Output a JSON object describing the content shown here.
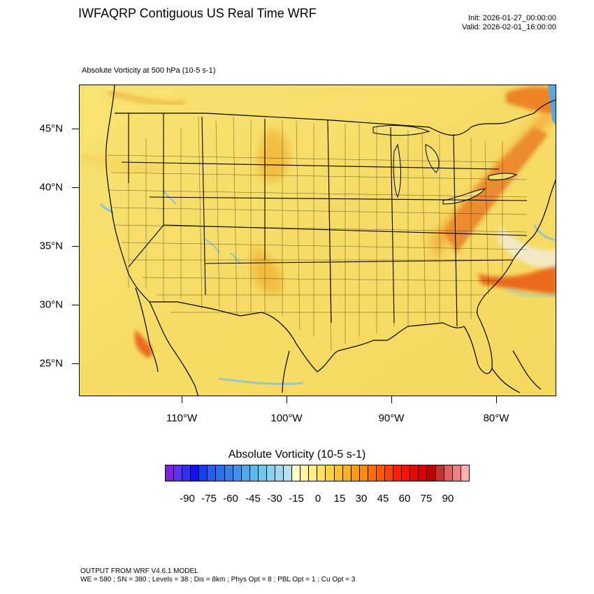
{
  "header": {
    "title": "IWFAQRP Contiguous US Real Time WRF",
    "init": "Init: 2026-01-27_00:00:00",
    "valid": "Valid: 2026-02-01_16:00:00"
  },
  "map": {
    "field_label": "Absolute Vorticity at 500 hPa   (10-5 s-1)",
    "lat_labels": [
      "45°N",
      "40°N",
      "35°N",
      "30°N",
      "25°N"
    ],
    "lon_labels": [
      "110°W",
      "100°W",
      "90°W",
      "80°W"
    ],
    "colors": {
      "background": "#f5e070",
      "positive_band": "#f0a020",
      "strong_band": "#e05010",
      "negative": "#6fc0f0"
    }
  },
  "colorbar": {
    "title": "Absolute Vorticity  (10-5 s-1)",
    "labels": [
      "-90",
      "-75",
      "-60",
      "-45",
      "-30",
      "-15",
      "0",
      "15",
      "30",
      "45",
      "60",
      "75",
      "90"
    ],
    "colors": [
      "#8020e0",
      "#6030f0",
      "#3030f0",
      "#1010f0",
      "#1040f0",
      "#2060f0",
      "#2a70e8",
      "#3380e8",
      "#4090f0",
      "#50a8f0",
      "#5ab8f0",
      "#70c8f0",
      "#88d0f0",
      "#a0d8f0",
      "#b8e0f0",
      "#ffffc0",
      "#fff5a0",
      "#ffef80",
      "#ffe060",
      "#ffd040",
      "#ffc030",
      "#ffb020",
      "#ff9a10",
      "#ff8a08",
      "#ff7000",
      "#ff5a00",
      "#ff4000",
      "#ff2000",
      "#f81000",
      "#e80800",
      "#d80000",
      "#c00000",
      "#c83030",
      "#e06060",
      "#f08080",
      "#ffb0b0"
    ]
  },
  "footer": {
    "line1": "OUTPUT FROM WRF V4.6.1 MODEL",
    "line2": "WE = 580 ; SN = 380 ; Levels = 38 ; Dis = 8km ; Phys Opt = 8 ; PBL Opt = 1 ; Cu Opt = 3"
  }
}
